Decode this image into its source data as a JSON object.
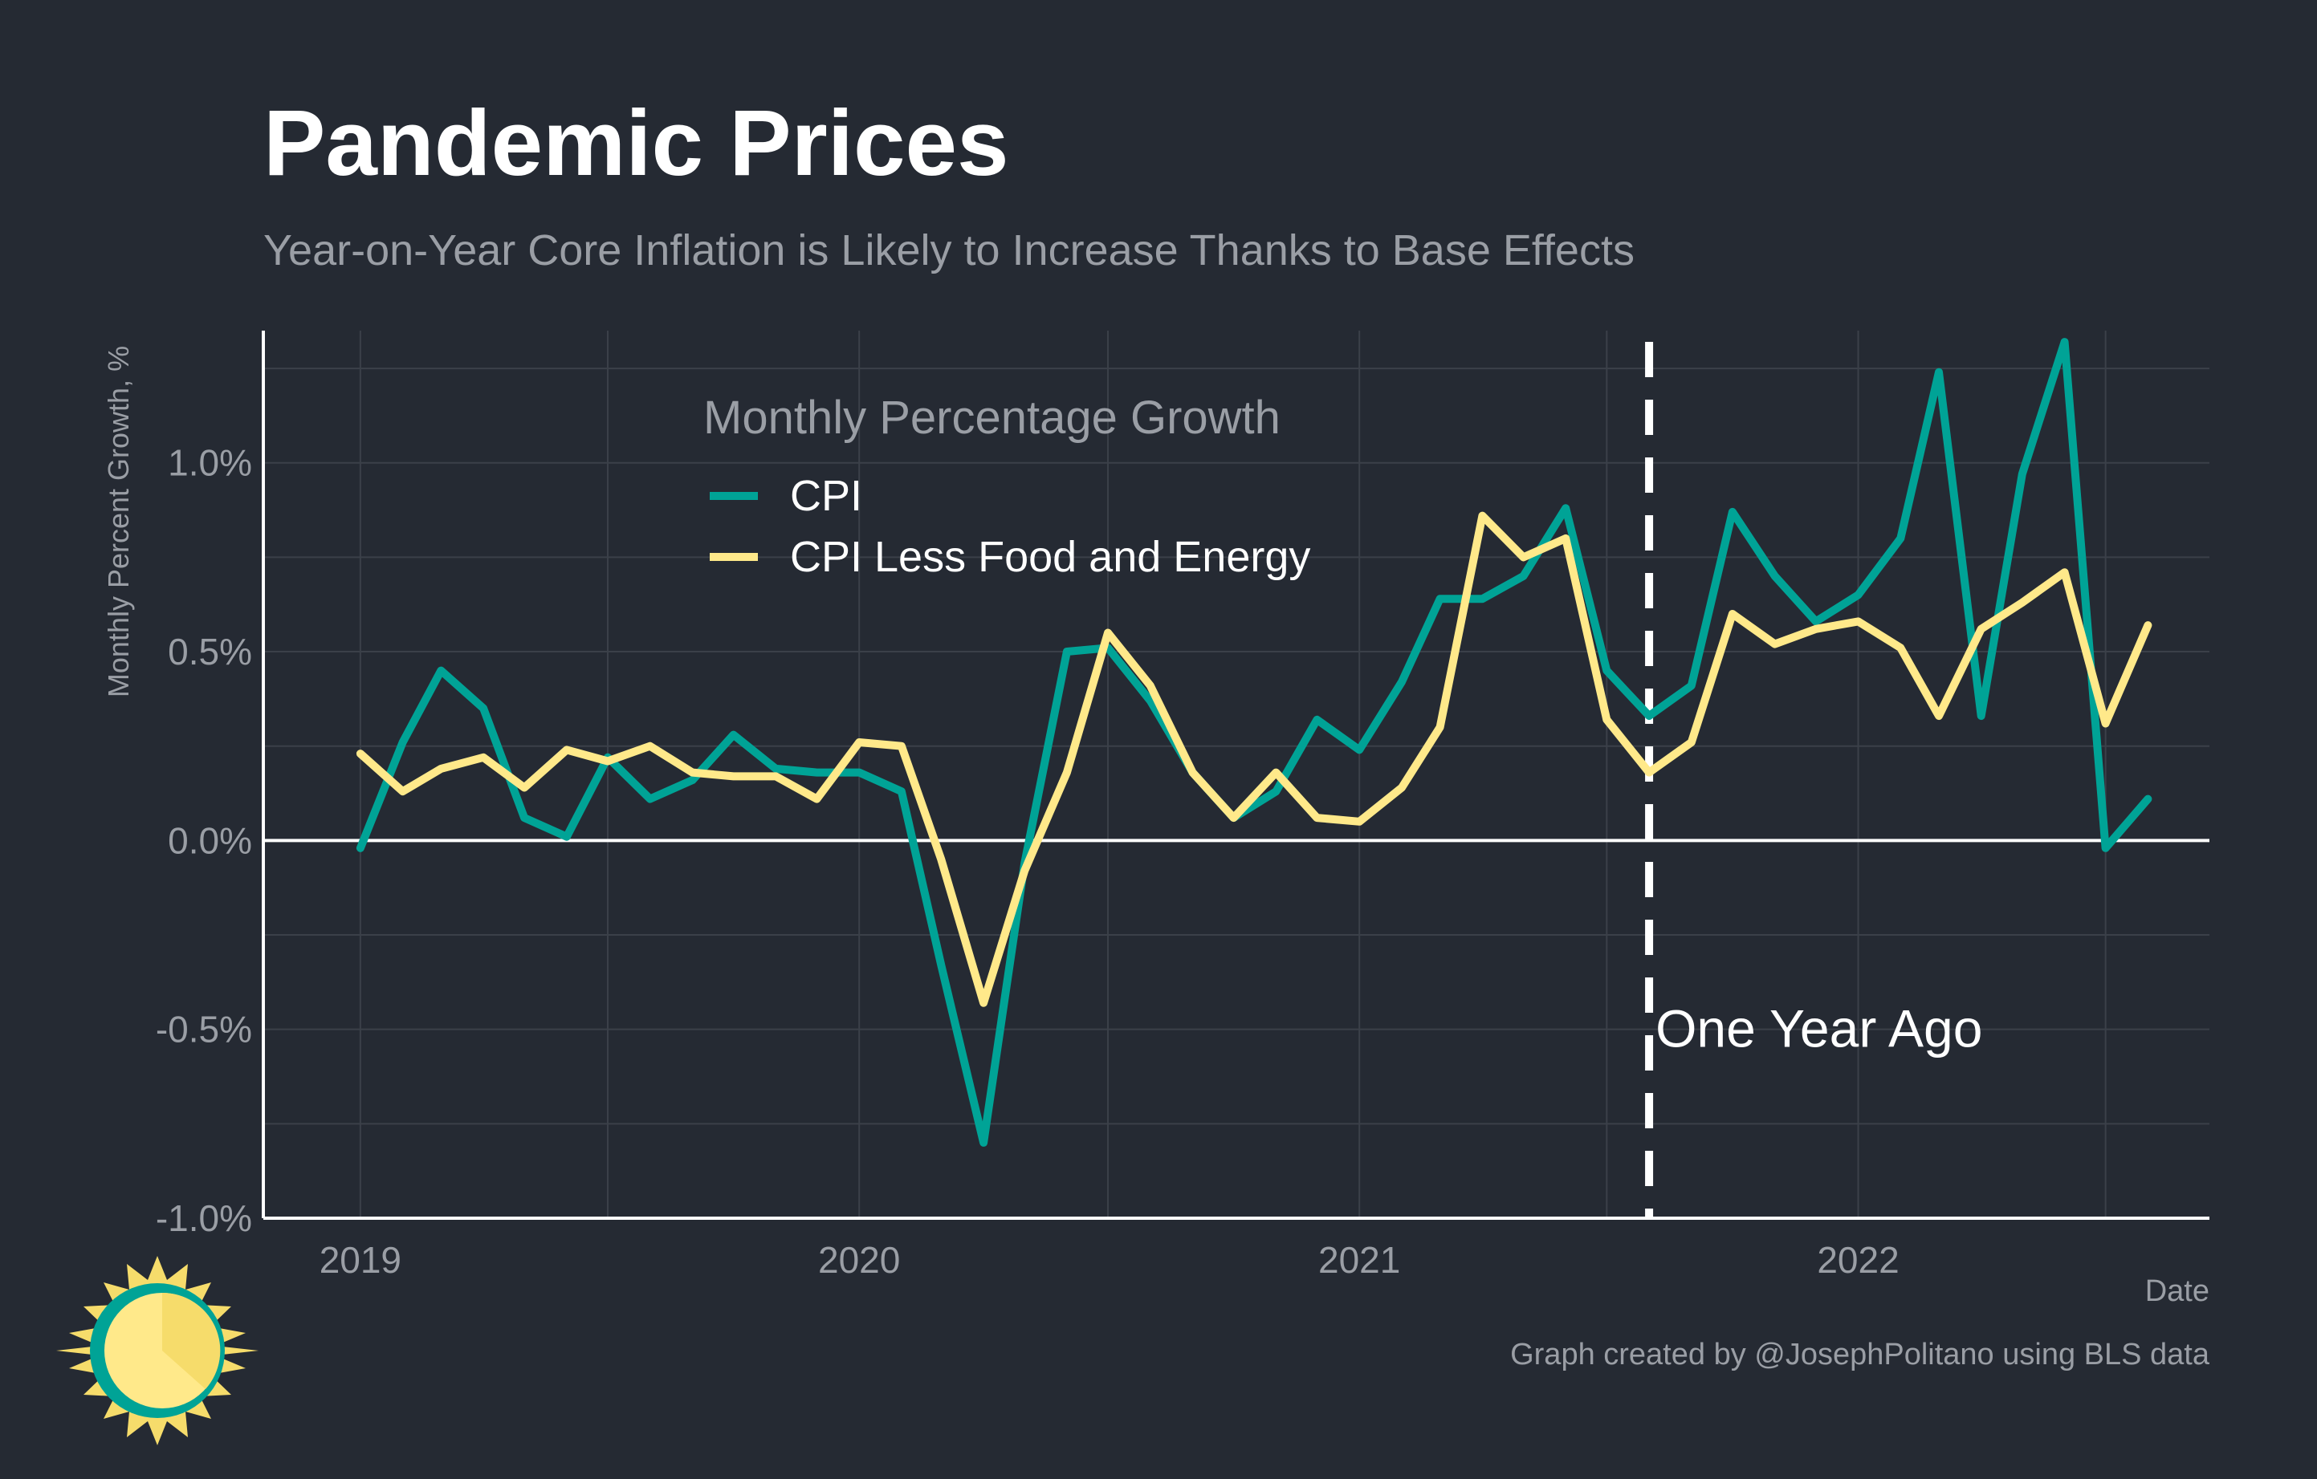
{
  "title": "Pandemic Prices",
  "subtitle": "Year-on-Year Core Inflation is Likely to Increase Thanks to Base Effects",
  "caption": "Graph created by @JosephPolitano using BLS data",
  "colors": {
    "background": "#252a33",
    "cpi": "#00a396",
    "core": "#ffe98a",
    "grid": "#3b4049",
    "axis": "#ffffff",
    "muted_text": "#9a9ea5"
  },
  "logo": {
    "icon": "sun-clock-logo-icon"
  },
  "chart_data": {
    "type": "line",
    "xlabel": "Date",
    "ylabel": "Monthly Percent Growth, %",
    "xlim": [
      "2018-10-22",
      "2022-09-15"
    ],
    "ylim": [
      -1.0,
      1.35
    ],
    "x_ticks": [
      "2019-01-01",
      "2020-01-01",
      "2021-01-01",
      "2022-01-01"
    ],
    "x_tick_labels": [
      "2019",
      "2020",
      "2021",
      "2022"
    ],
    "y_ticks": [
      -1.0,
      -0.5,
      0.0,
      0.5,
      1.0
    ],
    "y_tick_labels": [
      "-1.0%",
      "-0.5%",
      "0.0%",
      "0.5%",
      "1.0%"
    ],
    "grid": true,
    "legend": {
      "title": "Monthly Percentage Growth",
      "position": "top-center"
    },
    "reference_line": {
      "x": "2021-08-01",
      "label": "One Year Ago",
      "style": "dashed"
    },
    "x": [
      "2019-01-01",
      "2019-02-01",
      "2019-03-01",
      "2019-04-01",
      "2019-05-01",
      "2019-06-01",
      "2019-07-01",
      "2019-08-01",
      "2019-09-01",
      "2019-10-01",
      "2019-11-01",
      "2019-12-01",
      "2020-01-01",
      "2020-02-01",
      "2020-03-01",
      "2020-04-01",
      "2020-05-01",
      "2020-06-01",
      "2020-07-01",
      "2020-08-01",
      "2020-09-01",
      "2020-10-01",
      "2020-11-01",
      "2020-12-01",
      "2021-01-01",
      "2021-02-01",
      "2021-03-01",
      "2021-04-01",
      "2021-05-01",
      "2021-06-01",
      "2021-07-01",
      "2021-08-01",
      "2021-09-01",
      "2021-10-01",
      "2021-11-01",
      "2021-12-01",
      "2022-01-01",
      "2022-02-01",
      "2022-03-01",
      "2022-04-01",
      "2022-05-01",
      "2022-06-01",
      "2022-07-01",
      "2022-08-01"
    ],
    "series": [
      {
        "name": "CPI",
        "color": "#00a396",
        "values": [
          -0.02,
          0.26,
          0.45,
          0.35,
          0.06,
          0.01,
          0.22,
          0.11,
          0.16,
          0.28,
          0.19,
          0.18,
          0.18,
          0.13,
          -0.33,
          -0.8,
          -0.06,
          0.5,
          0.51,
          0.37,
          0.18,
          0.06,
          0.13,
          0.32,
          0.24,
          0.42,
          0.64,
          0.64,
          0.7,
          0.88,
          0.45,
          0.33,
          0.41,
          0.87,
          0.7,
          0.58,
          0.65,
          0.8,
          1.24,
          0.33,
          0.97,
          1.32,
          -0.02,
          0.11
        ]
      },
      {
        "name": "CPI Less Food and Energy",
        "color": "#ffe98a",
        "values": [
          0.23,
          0.13,
          0.19,
          0.22,
          0.14,
          0.24,
          0.21,
          0.25,
          0.18,
          0.17,
          0.17,
          0.11,
          0.26,
          0.25,
          -0.05,
          -0.43,
          -0.08,
          0.18,
          0.55,
          0.41,
          0.18,
          0.06,
          0.18,
          0.06,
          0.05,
          0.14,
          0.3,
          0.86,
          0.75,
          0.8,
          0.32,
          0.18,
          0.26,
          0.6,
          0.52,
          0.56,
          0.58,
          0.51,
          0.33,
          0.56,
          0.63,
          0.71,
          0.31,
          0.57
        ]
      }
    ]
  }
}
